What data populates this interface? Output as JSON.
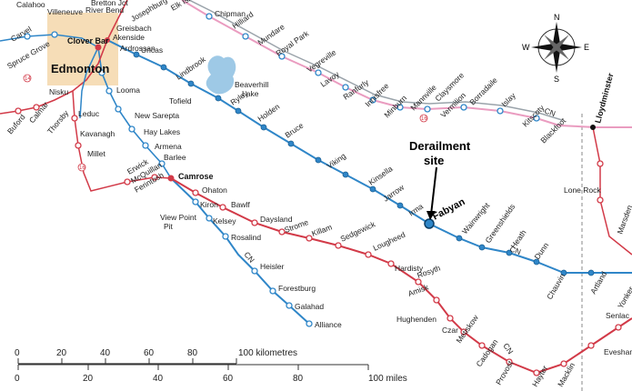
{
  "map": {
    "cities": {
      "edmonton": "Edmonton",
      "clover_bar": "Clover Bar",
      "camrose": "Camrose",
      "lloydminster": "Lloydminster"
    },
    "lake": {
      "line1": "Beaverhill",
      "line2": "Lake"
    },
    "derailment": {
      "line1": "Derailment",
      "line2": "site",
      "place": "Fabyan"
    },
    "compass": {
      "n": "N",
      "s": "S",
      "e": "E",
      "w": "W"
    },
    "railway_labels": {
      "cn_upper": "CN",
      "cn_mid": "CN",
      "cn_right": "CN",
      "cn_lower": "CN",
      "cp": "CN"
    },
    "highways": [
      "16",
      "16",
      "14"
    ],
    "blue_line_stations": [
      "Uncas",
      "Lindbrook",
      "Tofield",
      "Ryley",
      "Holden",
      "Bruce",
      "Viking",
      "Kinsella",
      "Jarrow",
      "Irma",
      "Fabyan",
      "Wainwright",
      "Greenshields",
      "Heath",
      "Dunn",
      "Chauvin",
      "Artland",
      "Yonker"
    ],
    "pink_line_stations": [
      "Chipman",
      "Hilliard",
      "Mundare",
      "Royal Park",
      "Vegreville",
      "Lavoy",
      "Ranfurly",
      "Innisfree",
      "Minburn",
      "Mannville",
      "Vermilion",
      "Claysmore",
      "Borradaile",
      "Islay",
      "Kitscoty",
      "Blackfoot"
    ],
    "red_line_stations": [
      "Camrose",
      "Ohaton",
      "Bawlf",
      "Daysland",
      "Strome",
      "Killam",
      "Sedgewick",
      "Lougheed",
      "Hardisty",
      "Rosyth",
      "Amisk",
      "Hughenden",
      "Czar",
      "Metiskow",
      "Cadogan",
      "Provost",
      "Hayter",
      "Macklin",
      "Evesham",
      "Senlac"
    ],
    "lower_blue_stations": [
      "Kiron",
      "Kelsey",
      "Rosalind",
      "Heisler",
      "Forestburg",
      "Galahad",
      "Alliance"
    ],
    "southwest_stations": [
      "Looma",
      "New Sarepta",
      "Hay Lakes",
      "Armena",
      "Barlee",
      "Nisku",
      "Leduc",
      "Kavanagh",
      "Millet",
      "Calmar",
      "Thorsby",
      "Buford",
      "Erwick",
      "McQuillan",
      "Ferintosh",
      "View Point",
      "Pit"
    ],
    "northwest_labels": [
      "Calahoo",
      "Villeneuve",
      "Carvel",
      "Spruce Grove",
      "Bretton Jct",
      "River Bend",
      "Josephburg",
      "Elk Island",
      "Greisbach",
      "Akenside",
      "Ardrossan",
      "Lone Rock",
      "Marsden"
    ]
  },
  "scale": {
    "km_ticks": [
      "0",
      "20",
      "40",
      "60",
      "80",
      "100 kilometres"
    ],
    "mile_ticks": [
      "0",
      "20",
      "40",
      "60",
      "80",
      "100 miles"
    ]
  }
}
